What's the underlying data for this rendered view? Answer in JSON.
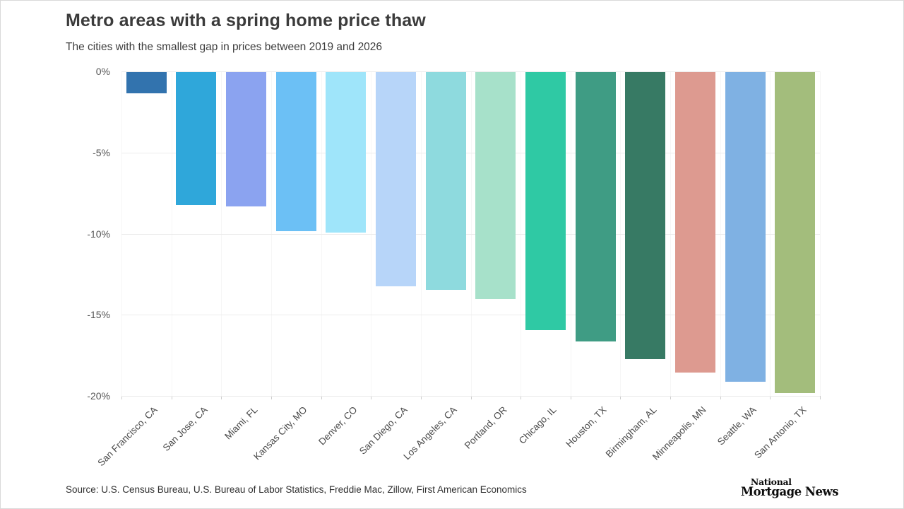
{
  "page": {
    "title": "Metro areas with a spring home price thaw",
    "subtitle": "The cities with the smallest gap in prices between 2019 and 2026",
    "source": "Source: U.S. Census Bureau, U.S. Bureau of Labor Statistics, Freddie Mac, Zillow, First American Economics",
    "logo": {
      "line1": "National",
      "line2": "Mortgage News"
    }
  },
  "chart_data": {
    "type": "bar",
    "title": "Metro areas with a spring home price thaw",
    "subtitle": "The cities with the smallest gap in prices between 2019 and 2026",
    "orientation": "vertical",
    "categories": [
      "San Francisco, CA",
      "San Jose, CA",
      "Miami, FL",
      "Kansas City, MO",
      "Denver, CO",
      "San Diego, CA",
      "Los Angeles, CA",
      "Portland, OR",
      "Chicago, IL",
      "Houston, TX",
      "Birmingham, AL",
      "Minneapolis, MN",
      "Seattle, WA",
      "San Antonio, TX"
    ],
    "values": [
      -1.3,
      -8.2,
      -8.3,
      -9.8,
      -9.9,
      -13.2,
      -13.4,
      -14.0,
      -15.9,
      -16.6,
      -17.7,
      -18.5,
      -19.1,
      -19.8
    ],
    "bar_colors": [
      "#3273ae",
      "#2fa7da",
      "#8ba3f0",
      "#6cc0f5",
      "#9fe5fa",
      "#b7d5f9",
      "#8edade",
      "#a7e1ca",
      "#2fc9a4",
      "#3f9c84",
      "#377a64",
      "#dd9a90",
      "#7fb1e3",
      "#a3bd7c"
    ],
    "xlabel": "",
    "ylabel": "",
    "ylim": [
      -20,
      0
    ],
    "yticks": [
      0,
      -5,
      -10,
      -15,
      -20
    ],
    "ytick_labels": [
      "0%",
      "-5%",
      "-10%",
      "-15%",
      "-20%"
    ],
    "grid": "horizontal",
    "legend": "none",
    "value_unit": "percent"
  }
}
